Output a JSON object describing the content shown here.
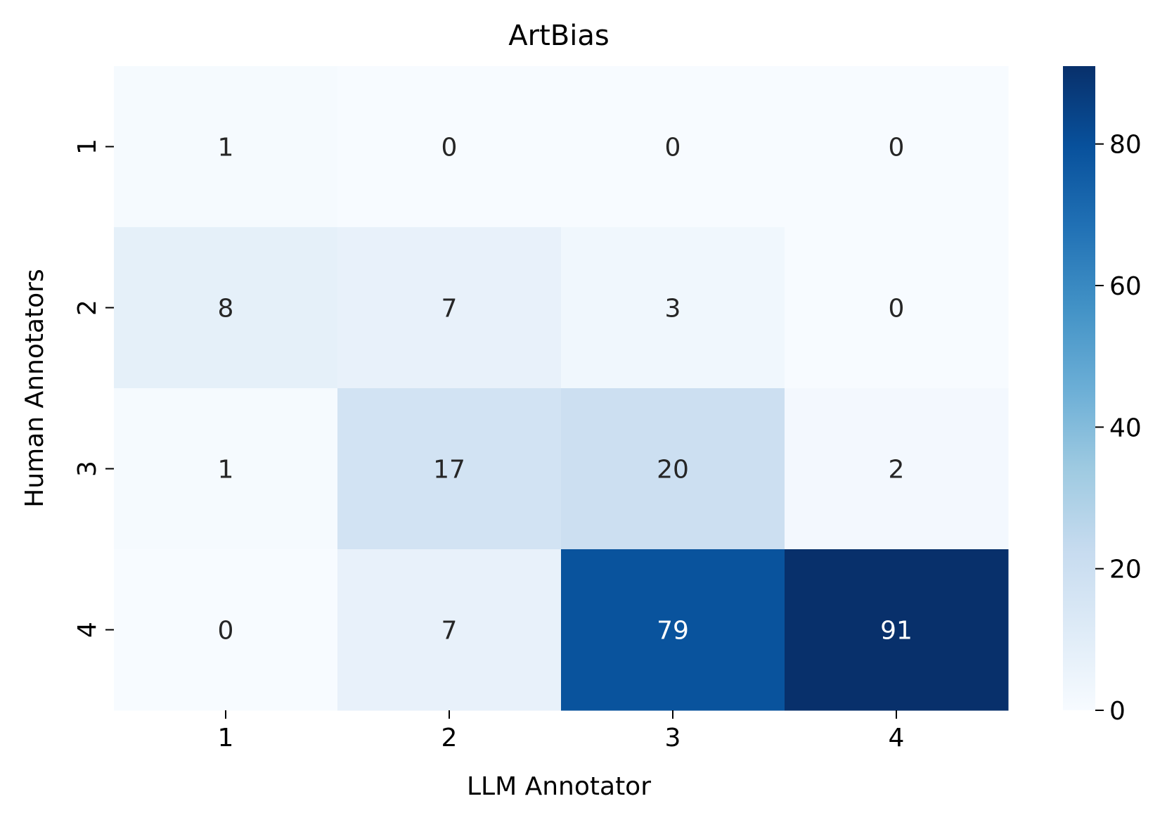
{
  "chart_data": {
    "type": "heatmap",
    "title": "ArtBias",
    "xlabel": "LLM Annotator",
    "ylabel": "Human Annotators",
    "x_categories": [
      "1",
      "2",
      "3",
      "4"
    ],
    "y_categories": [
      "1",
      "2",
      "3",
      "4"
    ],
    "values": [
      [
        1,
        0,
        0,
        0
      ],
      [
        8,
        7,
        3,
        0
      ],
      [
        1,
        17,
        20,
        2
      ],
      [
        0,
        7,
        79,
        91
      ]
    ],
    "colormap": "Blues",
    "vmin": 0,
    "vmax": 91,
    "colorbar_ticks": [
      0,
      20,
      40,
      60,
      80
    ],
    "colorbar_tick_labels": [
      "0",
      "20",
      "40",
      "60",
      "80"
    ],
    "text_color_light": "#ffffff",
    "text_color_dark": "#262626"
  }
}
